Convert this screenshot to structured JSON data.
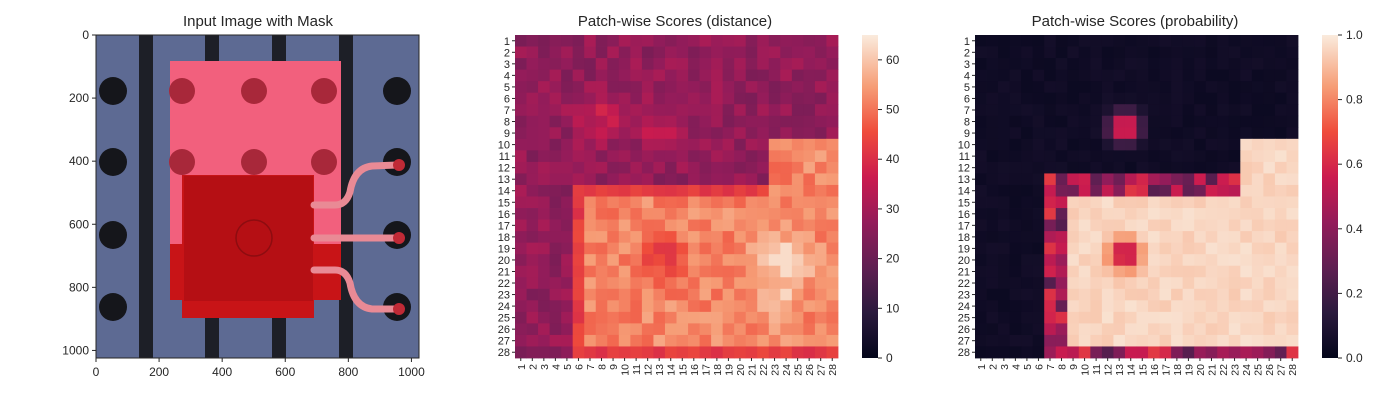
{
  "colors": {
    "axis": "#262626",
    "background": "#ffffff"
  },
  "chart_data": [
    {
      "type": "image",
      "title": "Input Image with Mask",
      "xlim": [
        0,
        1024
      ],
      "ylim": [
        1024,
        0
      ],
      "xticks": [
        "0",
        "200",
        "400",
        "600",
        "800",
        "1000"
      ],
      "yticks": [
        "0",
        "200",
        "400",
        "600",
        "800",
        "1000"
      ],
      "image_content": "Photo of an electronic component on a dark board with a translucent red mask overlay",
      "colors": {
        "board": "#5d6a93",
        "mask": "#ff3b5c",
        "component": "#c91212",
        "hole": "#1a1a1a"
      }
    },
    {
      "type": "heatmap",
      "title": "Patch-wise Scores (distance)",
      "xticks": [
        "1",
        "2",
        "3",
        "4",
        "5",
        "6",
        "7",
        "8",
        "9",
        "10",
        "11",
        "12",
        "13",
        "14",
        "15",
        "16",
        "17",
        "18",
        "19",
        "20",
        "21",
        "22",
        "23",
        "24",
        "25",
        "26",
        "27",
        "28"
      ],
      "yticks": [
        "1",
        "2",
        "3",
        "4",
        "5",
        "6",
        "7",
        "8",
        "9",
        "10",
        "11",
        "12",
        "13",
        "14",
        "15",
        "16",
        "17",
        "18",
        "19",
        "20",
        "21",
        "22",
        "23",
        "24",
        "25",
        "26",
        "27",
        "28"
      ],
      "colorbar_ticks": [
        "0",
        "10",
        "20",
        "30",
        "40",
        "50",
        "60"
      ],
      "vmin": 0,
      "vmax": 65,
      "colormap": "rocket"
    },
    {
      "type": "heatmap",
      "title": "Patch-wise Scores (probability)",
      "xticks": [
        "1",
        "2",
        "3",
        "4",
        "5",
        "6",
        "7",
        "8",
        "9",
        "10",
        "11",
        "12",
        "13",
        "14",
        "15",
        "16",
        "17",
        "18",
        "19",
        "20",
        "21",
        "22",
        "23",
        "24",
        "25",
        "26",
        "27",
        "28"
      ],
      "yticks": [
        "1",
        "2",
        "3",
        "4",
        "5",
        "6",
        "7",
        "8",
        "9",
        "10",
        "11",
        "12",
        "13",
        "14",
        "15",
        "16",
        "17",
        "18",
        "19",
        "20",
        "21",
        "22",
        "23",
        "24",
        "25",
        "26",
        "27",
        "28"
      ],
      "colorbar_ticks": [
        "0.0",
        "0.2",
        "0.4",
        "0.6",
        "0.8",
        "1.0"
      ],
      "vmin": 0,
      "vmax": 1,
      "colormap": "rocket"
    }
  ]
}
